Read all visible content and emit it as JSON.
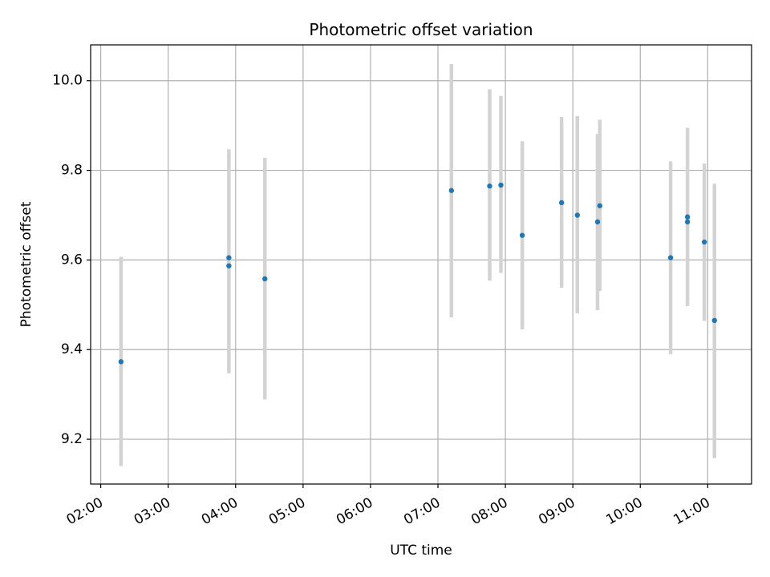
{
  "chart_data": {
    "type": "scatter",
    "title": "Photometric offset variation",
    "xlabel": "UTC time",
    "ylabel": "Photometric offset",
    "xlim": [
      "01:51",
      "11:39"
    ],
    "ylim": [
      9.1,
      10.08
    ],
    "grid": true,
    "x_ticks": [
      "02:00",
      "03:00",
      "04:00",
      "05:00",
      "06:00",
      "07:00",
      "08:00",
      "09:00",
      "10:00",
      "11:00"
    ],
    "y_ticks": [
      "9.2",
      "9.4",
      "9.6",
      "9.8",
      "10.0"
    ],
    "series": [
      {
        "marker_color": "#1f77b4",
        "errorbar_color": "#d3d3d3",
        "points": [
          {
            "x": "02:18",
            "y": 9.373,
            "ymin": 9.14,
            "ymax": 9.607
          },
          {
            "x": "03:54",
            "y": 9.605,
            "ymin": 9.347,
            "ymax": 9.847
          },
          {
            "x": "03:54",
            "y": 9.587
          },
          {
            "x": "04:26",
            "y": 9.558,
            "ymin": 9.289,
            "ymax": 9.828
          },
          {
            "x": "07:12",
            "y": 9.755,
            "ymin": 9.472,
            "ymax": 10.037
          },
          {
            "x": "07:46",
            "y": 9.765,
            "ymin": 9.554,
            "ymax": 9.981
          },
          {
            "x": "07:56",
            "y": 9.767,
            "ymin": 9.571,
            "ymax": 9.966
          },
          {
            "x": "08:15",
            "y": 9.655,
            "ymin": 9.445,
            "ymax": 9.865
          },
          {
            "x": "08:50",
            "y": 9.728,
            "ymin": 9.538,
            "ymax": 9.919
          },
          {
            "x": "09:04",
            "y": 9.7,
            "ymin": 9.481,
            "ymax": 9.921
          },
          {
            "x": "09:22",
            "y": 9.685,
            "ymin": 9.488,
            "ymax": 9.881
          },
          {
            "x": "09:24",
            "y": 9.721,
            "ymin": 9.531,
            "ymax": 9.913
          },
          {
            "x": "10:27",
            "y": 9.605,
            "ymin": 9.39,
            "ymax": 9.82
          },
          {
            "x": "10:42",
            "y": 9.696,
            "ymin": 9.497,
            "ymax": 9.895
          },
          {
            "x": "10:42",
            "y": 9.685
          },
          {
            "x": "10:57",
            "y": 9.64,
            "ymin": 9.464,
            "ymax": 9.815
          },
          {
            "x": "11:06",
            "y": 9.465,
            "ymin": 9.158,
            "ymax": 9.77
          }
        ]
      }
    ]
  }
}
